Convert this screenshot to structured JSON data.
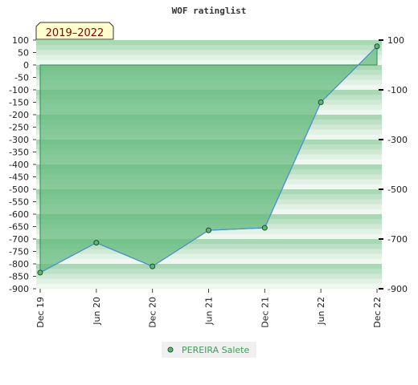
{
  "chart_data": {
    "type": "area",
    "title": "WOF ratinglist",
    "period_badge": "2019–2022",
    "x_categories": [
      "Dec 19",
      "Jun 20",
      "Dec 20",
      "Jun 21",
      "Dec 21",
      "Jun 22",
      "Dec 22"
    ],
    "series": [
      {
        "name": "PEREIRA Salete",
        "values": [
          -835,
          -715,
          -810,
          -665,
          -655,
          -150,
          75
        ]
      }
    ],
    "ylim": [
      -900,
      100
    ],
    "left_ticks": [
      100,
      50,
      0,
      -50,
      -100,
      -150,
      -200,
      -250,
      -300,
      -350,
      -400,
      -450,
      -500,
      -550,
      -600,
      -650,
      -700,
      -750,
      -800,
      -850,
      -900
    ],
    "right_ticks": [
      100,
      -100,
      -300,
      -500,
      -700,
      -900
    ],
    "grid": false,
    "legend_position": "bottom-center",
    "colors": {
      "area_fill": "#66bb7e",
      "line": "#4a90d9",
      "marker_fill": "#5cb870",
      "band_dark": "#a9d8b5",
      "band_light": "#eef8f0",
      "badge_bg": "#ffffcc"
    }
  }
}
